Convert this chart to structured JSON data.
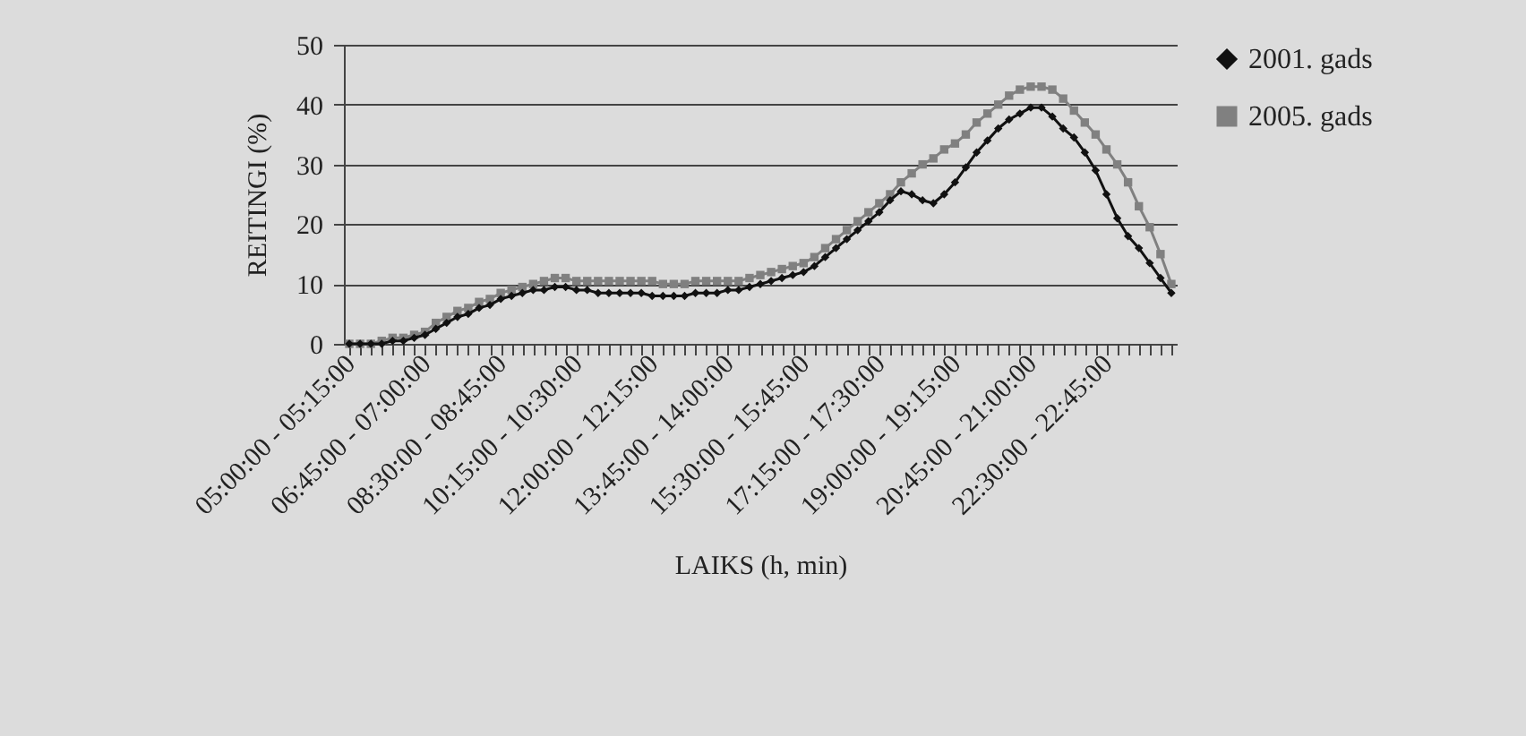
{
  "chart_data": {
    "type": "line",
    "xlabel": "LAIKS (h, min)",
    "ylabel": "REITINGI (%)",
    "categories": [
      "05:00:00 - 05:15:00",
      null,
      null,
      null,
      null,
      null,
      null,
      "06:45:00 - 07:00:00",
      null,
      null,
      null,
      null,
      null,
      null,
      "08:30:00 - 08:45:00",
      null,
      null,
      null,
      null,
      null,
      null,
      "10:15:00 - 10:30:00",
      null,
      null,
      null,
      null,
      null,
      null,
      "12:00:00 - 12:15:00",
      null,
      null,
      null,
      null,
      null,
      null,
      "13:45:00 - 14:00:00",
      null,
      null,
      null,
      null,
      null,
      null,
      "15:30:00 - 15:45:00",
      null,
      null,
      null,
      null,
      null,
      null,
      "17:15:00 - 17:30:00",
      null,
      null,
      null,
      null,
      null,
      null,
      "19:00:00 - 19:15:00",
      null,
      null,
      null,
      null,
      null,
      null,
      "20:45:00 - 21:00:00",
      null,
      null,
      null,
      null,
      null,
      null,
      "22:30:00 - 22:45:00",
      null,
      null,
      null,
      null,
      null,
      null
    ],
    "series": [
      {
        "name": "2001. gads",
        "color": "#111111",
        "marker": "diamond",
        "values": [
          0,
          0,
          0,
          0,
          0.5,
          0.5,
          1,
          1.5,
          2.5,
          3.5,
          4.5,
          5,
          6,
          6.5,
          7.5,
          8,
          8.5,
          9,
          9,
          9.5,
          9.5,
          9,
          9,
          8.5,
          8.5,
          8.5,
          8.5,
          8.5,
          8,
          8,
          8,
          8,
          8.5,
          8.5,
          8.5,
          9,
          9,
          9.5,
          10,
          10.5,
          11,
          11.5,
          12,
          13,
          14.5,
          16,
          17.5,
          19,
          20.5,
          22,
          24,
          25.5,
          25,
          24,
          23.5,
          25,
          27,
          29.5,
          32,
          34,
          36,
          37.5,
          38.5,
          39.5,
          39.5,
          38,
          36,
          34.5,
          32,
          29,
          25,
          21,
          18,
          16,
          13.5,
          11,
          8.5
        ]
      },
      {
        "name": "2005. gads",
        "color": "#808080",
        "marker": "square",
        "values": [
          0,
          0,
          0,
          0.5,
          1,
          1,
          1.5,
          2,
          3.5,
          4.5,
          5.5,
          6,
          7,
          7.5,
          8.5,
          9,
          9.5,
          10,
          10.5,
          11,
          11,
          10.5,
          10.5,
          10.5,
          10.5,
          10.5,
          10.5,
          10.5,
          10.5,
          10,
          10,
          10,
          10.5,
          10.5,
          10.5,
          10.5,
          10.5,
          11,
          11.5,
          12,
          12.5,
          13,
          13.5,
          14.5,
          16,
          17.5,
          19,
          20.5,
          22,
          23.5,
          25,
          27,
          28.5,
          30,
          31,
          32.5,
          33.5,
          35,
          37,
          38.5,
          40,
          41.5,
          42.5,
          43,
          43,
          42.5,
          41,
          39,
          37,
          35,
          32.5,
          30,
          27,
          23,
          19.5,
          15,
          10
        ]
      }
    ],
    "ylim": [
      0,
      50
    ],
    "yticks": [
      0,
      10,
      20,
      30,
      40,
      50
    ],
    "grid": "y",
    "legend": "right"
  }
}
